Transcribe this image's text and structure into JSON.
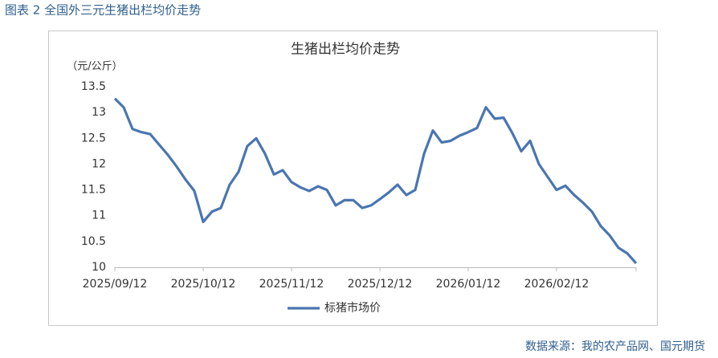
{
  "figure_title": "图表 2 全国外三元生猪出栏均价走势",
  "source": "数据来源：我的农产品网、国元期货",
  "chart_data": {
    "type": "line",
    "title": "生猪出栏均价走势",
    "y_label": "（元/公斤）",
    "categories": [
      "2025/09/12",
      null,
      null,
      null,
      null,
      null,
      null,
      null,
      null,
      null,
      "2025/10/12",
      null,
      null,
      null,
      null,
      null,
      null,
      null,
      null,
      null,
      "2025/11/12",
      null,
      null,
      null,
      null,
      null,
      null,
      null,
      null,
      null,
      "2025/12/12",
      null,
      null,
      null,
      null,
      null,
      null,
      null,
      null,
      null,
      "2026/01/12",
      null,
      null,
      null,
      null,
      null,
      null,
      null,
      null,
      null,
      "2026/02/12",
      null,
      null,
      null,
      null,
      null,
      null,
      null,
      null,
      null
    ],
    "series": [
      {
        "name": "标猪市场价",
        "color": "#4a76b0",
        "values": [
          13.27,
          13.1,
          12.68,
          12.62,
          12.58,
          12.38,
          12.18,
          11.95,
          11.7,
          11.48,
          10.88,
          11.08,
          11.15,
          11.6,
          11.85,
          12.35,
          12.5,
          12.2,
          11.8,
          11.88,
          11.65,
          11.55,
          11.48,
          11.57,
          11.5,
          11.2,
          11.3,
          11.3,
          11.15,
          11.2,
          11.32,
          11.45,
          11.6,
          11.4,
          11.5,
          12.2,
          12.65,
          12.42,
          12.45,
          12.55,
          12.62,
          12.7,
          13.1,
          12.88,
          12.9,
          12.6,
          12.25,
          12.45,
          12.0,
          11.75,
          11.5,
          11.58,
          11.4,
          11.25,
          11.08,
          10.8,
          10.62,
          10.38,
          10.27,
          10.08
        ]
      }
    ],
    "ylim": [
      10,
      13.5
    ],
    "yticks": [
      10,
      10.5,
      11,
      11.5,
      12,
      12.5,
      13,
      13.5
    ],
    "grid": false,
    "legend": "bottom"
  }
}
